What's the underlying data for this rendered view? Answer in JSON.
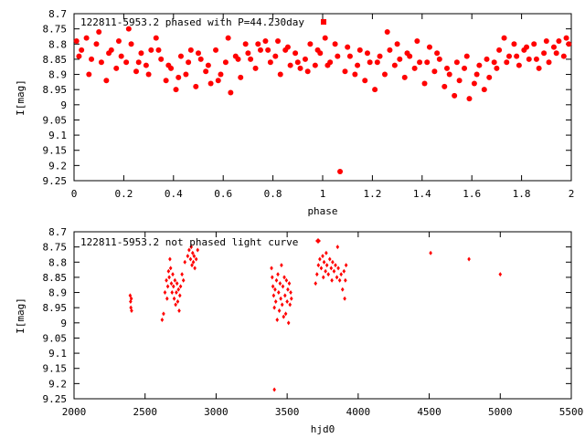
{
  "colors": {
    "marker": "#ff0000",
    "axis": "#000000",
    "background": "#ffffff"
  },
  "chart_data": [
    {
      "type": "scatter",
      "title": "122811-5953.2 phased with P=44.230day",
      "xlabel": "phase",
      "ylabel": "I[mag]",
      "xlim": [
        0,
        2
      ],
      "ylim": [
        9.25,
        8.7
      ],
      "y_inverted": true,
      "grid": false,
      "marker": "filled-circle",
      "xticks": [
        "0",
        "0.2",
        "0.4",
        "0.6",
        "0.8",
        "1",
        "1.2",
        "1.4",
        "1.6",
        "1.8",
        "2"
      ],
      "xtick_values": [
        0,
        0.2,
        0.4,
        0.6,
        0.8,
        1,
        1.2,
        1.4,
        1.6,
        1.8,
        2
      ],
      "yticks": [
        "8.7",
        "8.75",
        "8.8",
        "8.85",
        "8.9",
        "8.95",
        "9",
        "9.05",
        "9.1",
        "9.15",
        "9.2",
        "9.25"
      ],
      "ytick_values": [
        8.7,
        8.75,
        8.8,
        8.85,
        8.9,
        8.95,
        9.0,
        9.05,
        9.1,
        9.15,
        9.2,
        9.25
      ],
      "points": [
        [
          0.01,
          8.79
        ],
        [
          0.03,
          8.82
        ],
        [
          0.05,
          8.78
        ],
        [
          0.07,
          8.85
        ],
        [
          0.09,
          8.8
        ],
        [
          0.11,
          8.86
        ],
        [
          0.13,
          8.92
        ],
        [
          0.15,
          8.82
        ],
        [
          0.17,
          8.88
        ],
        [
          0.19,
          8.84
        ],
        [
          0.21,
          8.86
        ],
        [
          0.23,
          8.8
        ],
        [
          0.25,
          8.89
        ],
        [
          0.27,
          8.83
        ],
        [
          0.29,
          8.87
        ],
        [
          0.31,
          8.82
        ],
        [
          0.33,
          8.78
        ],
        [
          0.35,
          8.85
        ],
        [
          0.37,
          8.92
        ],
        [
          0.39,
          8.88
        ],
        [
          0.41,
          8.95
        ],
        [
          0.43,
          8.84
        ],
        [
          0.45,
          8.9
        ],
        [
          0.47,
          8.82
        ],
        [
          0.49,
          8.94
        ],
        [
          0.51,
          8.85
        ],
        [
          0.53,
          8.89
        ],
        [
          0.55,
          8.93
        ],
        [
          0.57,
          8.82
        ],
        [
          0.59,
          8.9
        ],
        [
          0.61,
          8.86
        ],
        [
          0.63,
          8.96
        ],
        [
          0.65,
          8.84
        ],
        [
          0.67,
          8.91
        ],
        [
          0.69,
          8.8
        ],
        [
          0.71,
          8.85
        ],
        [
          0.73,
          8.88
        ],
        [
          0.75,
          8.82
        ],
        [
          0.77,
          8.79
        ],
        [
          0.79,
          8.86
        ],
        [
          0.81,
          8.84
        ],
        [
          0.83,
          8.9
        ],
        [
          0.85,
          8.82
        ],
        [
          0.87,
          8.87
        ],
        [
          0.89,
          8.83
        ],
        [
          0.91,
          8.88
        ],
        [
          0.93,
          8.85
        ],
        [
          0.95,
          8.8
        ],
        [
          0.97,
          8.87
        ],
        [
          0.99,
          8.83
        ],
        [
          1.01,
          8.78
        ],
        [
          1.03,
          8.86
        ],
        [
          1.05,
          8.8
        ],
        [
          1.07,
          9.22
        ],
        [
          1.09,
          8.89
        ],
        [
          1.11,
          8.84
        ],
        [
          1.13,
          8.9
        ],
        [
          1.15,
          8.82
        ],
        [
          1.17,
          8.92
        ],
        [
          1.19,
          8.86
        ],
        [
          1.21,
          8.95
        ],
        [
          1.23,
          8.84
        ],
        [
          1.25,
          8.9
        ],
        [
          1.27,
          8.82
        ],
        [
          1.29,
          8.87
        ],
        [
          1.31,
          8.85
        ],
        [
          1.33,
          8.91
        ],
        [
          1.35,
          8.84
        ],
        [
          1.37,
          8.88
        ],
        [
          1.39,
          8.86
        ],
        [
          1.41,
          8.93
        ],
        [
          1.43,
          8.81
        ],
        [
          1.45,
          8.89
        ],
        [
          1.47,
          8.85
        ],
        [
          1.49,
          8.94
        ],
        [
          1.51,
          8.9
        ],
        [
          1.53,
          8.97
        ],
        [
          1.55,
          8.92
        ],
        [
          1.57,
          8.88
        ],
        [
          1.59,
          8.98
        ],
        [
          1.61,
          8.93
        ],
        [
          1.63,
          8.87
        ],
        [
          1.65,
          8.95
        ],
        [
          1.67,
          8.91
        ],
        [
          1.69,
          8.86
        ],
        [
          1.71,
          8.82
        ],
        [
          1.73,
          8.78
        ],
        [
          1.75,
          8.84
        ],
        [
          1.77,
          8.8
        ],
        [
          1.79,
          8.87
        ],
        [
          1.81,
          8.82
        ],
        [
          1.83,
          8.85
        ],
        [
          1.85,
          8.8
        ],
        [
          1.87,
          8.88
        ],
        [
          1.89,
          8.83
        ],
        [
          1.91,
          8.86
        ],
        [
          1.93,
          8.81
        ],
        [
          1.95,
          8.79
        ],
        [
          1.97,
          8.84
        ],
        [
          1.99,
          8.8
        ],
        [
          0.02,
          8.84
        ],
        [
          0.06,
          8.9
        ],
        [
          0.1,
          8.76
        ],
        [
          0.14,
          8.83
        ],
        [
          0.18,
          8.79
        ],
        [
          0.22,
          8.75
        ],
        [
          0.26,
          8.86
        ],
        [
          0.3,
          8.9
        ],
        [
          0.34,
          8.82
        ],
        [
          0.38,
          8.87
        ],
        [
          0.42,
          8.91
        ],
        [
          0.46,
          8.86
        ],
        [
          0.5,
          8.83
        ],
        [
          0.54,
          8.87
        ],
        [
          0.58,
          8.92
        ],
        [
          0.62,
          8.78
        ],
        [
          0.66,
          8.85
        ],
        [
          0.7,
          8.83
        ],
        [
          0.74,
          8.8
        ],
        [
          0.78,
          8.82
        ],
        [
          0.82,
          8.79
        ],
        [
          0.86,
          8.81
        ],
        [
          0.9,
          8.86
        ],
        [
          0.94,
          8.89
        ],
        [
          0.98,
          8.82
        ],
        [
          1.02,
          8.87
        ],
        [
          1.06,
          8.84
        ],
        [
          1.1,
          8.81
        ],
        [
          1.14,
          8.87
        ],
        [
          1.18,
          8.83
        ],
        [
          1.22,
          8.86
        ],
        [
          1.26,
          8.76
        ],
        [
          1.3,
          8.8
        ],
        [
          1.34,
          8.83
        ],
        [
          1.38,
          8.79
        ],
        [
          1.42,
          8.86
        ],
        [
          1.46,
          8.83
        ],
        [
          1.5,
          8.88
        ],
        [
          1.54,
          8.86
        ],
        [
          1.58,
          8.84
        ],
        [
          1.62,
          8.9
        ],
        [
          1.66,
          8.85
        ],
        [
          1.7,
          8.88
        ],
        [
          1.74,
          8.86
        ],
        [
          1.78,
          8.84
        ],
        [
          1.82,
          8.81
        ],
        [
          1.86,
          8.85
        ],
        [
          1.9,
          8.79
        ],
        [
          1.94,
          8.83
        ],
        [
          1.98,
          8.78
        ]
      ]
    },
    {
      "type": "scatter",
      "title": "122811-5953.2 not phased light curve",
      "xlabel": "hjd0",
      "ylabel": "I[mag]",
      "xlim": [
        2000,
        5500
      ],
      "ylim": [
        9.25,
        8.7
      ],
      "y_inverted": true,
      "grid": false,
      "marker": "small-diamond",
      "xticks": [
        "2000",
        "2500",
        "3000",
        "3500",
        "4000",
        "4500",
        "5000",
        "5500"
      ],
      "xtick_values": [
        2000,
        2500,
        3000,
        3500,
        4000,
        4500,
        5000,
        5500
      ],
      "yticks": [
        "8.7",
        "8.75",
        "8.8",
        "8.85",
        "8.9",
        "8.95",
        "9",
        "9.05",
        "9.1",
        "9.15",
        "9.2",
        "9.25"
      ],
      "ytick_values": [
        8.7,
        8.75,
        8.8,
        8.85,
        8.9,
        8.95,
        9.0,
        9.05,
        9.1,
        9.15,
        9.2,
        9.25
      ],
      "points": [
        [
          2395,
          8.91
        ],
        [
          2398,
          8.93
        ],
        [
          2400,
          8.95
        ],
        [
          2403,
          8.92
        ],
        [
          2405,
          8.96
        ],
        [
          2620,
          8.99
        ],
        [
          2630,
          8.97
        ],
        [
          2640,
          8.9
        ],
        [
          2650,
          8.86
        ],
        [
          2655,
          8.92
        ],
        [
          2660,
          8.88
        ],
        [
          2665,
          8.83
        ],
        [
          2670,
          8.85
        ],
        [
          2675,
          8.79
        ],
        [
          2680,
          8.82
        ],
        [
          2685,
          8.87
        ],
        [
          2690,
          8.9
        ],
        [
          2695,
          8.84
        ],
        [
          2700,
          8.88
        ],
        [
          2705,
          8.92
        ],
        [
          2710,
          8.86
        ],
        [
          2715,
          8.94
        ],
        [
          2720,
          8.9
        ],
        [
          2725,
          8.87
        ],
        [
          2730,
          8.93
        ],
        [
          2735,
          8.89
        ],
        [
          2740,
          8.96
        ],
        [
          2745,
          8.91
        ],
        [
          2750,
          8.88
        ],
        [
          2760,
          8.84
        ],
        [
          2770,
          8.86
        ],
        [
          2780,
          8.8
        ],
        [
          2800,
          8.78
        ],
        [
          2810,
          8.76
        ],
        [
          2820,
          8.79
        ],
        [
          2825,
          8.75
        ],
        [
          2830,
          8.81
        ],
        [
          2835,
          8.77
        ],
        [
          2840,
          8.8
        ],
        [
          2845,
          8.78
        ],
        [
          2850,
          8.82
        ],
        [
          2860,
          8.79
        ],
        [
          2870,
          8.76
        ],
        [
          3390,
          8.82
        ],
        [
          3395,
          8.85
        ],
        [
          3400,
          8.88
        ],
        [
          3405,
          8.91
        ],
        [
          3410,
          8.95
        ],
        [
          3415,
          8.89
        ],
        [
          3420,
          8.93
        ],
        [
          3425,
          8.86
        ],
        [
          3430,
          8.99
        ],
        [
          3435,
          8.84
        ],
        [
          3440,
          8.9
        ],
        [
          3445,
          8.96
        ],
        [
          3450,
          8.87
        ],
        [
          3455,
          8.92
        ],
        [
          3460,
          8.81
        ],
        [
          3465,
          8.94
        ],
        [
          3470,
          8.88
        ],
        [
          3475,
          8.98
        ],
        [
          3480,
          8.85
        ],
        [
          3485,
          8.91
        ],
        [
          3490,
          8.97
        ],
        [
          3495,
          8.86
        ],
        [
          3500,
          8.93
        ],
        [
          3505,
          8.89
        ],
        [
          3510,
          9.0
        ],
        [
          3515,
          8.87
        ],
        [
          3520,
          8.94
        ],
        [
          3525,
          8.9
        ],
        [
          3530,
          8.92
        ],
        [
          3410,
          9.22
        ],
        [
          3700,
          8.87
        ],
        [
          3710,
          8.84
        ],
        [
          3720,
          8.81
        ],
        [
          3730,
          8.79
        ],
        [
          3740,
          8.82
        ],
        [
          3750,
          8.78
        ],
        [
          3755,
          8.85
        ],
        [
          3760,
          8.8
        ],
        [
          3770,
          8.83
        ],
        [
          3775,
          8.77
        ],
        [
          3780,
          8.81
        ],
        [
          3790,
          8.84
        ],
        [
          3800,
          8.79
        ],
        [
          3810,
          8.82
        ],
        [
          3815,
          8.86
        ],
        [
          3820,
          8.8
        ],
        [
          3830,
          8.83
        ],
        [
          3840,
          8.81
        ],
        [
          3850,
          8.85
        ],
        [
          3855,
          8.75
        ],
        [
          3860,
          8.82
        ],
        [
          3870,
          8.86
        ],
        [
          3880,
          8.84
        ],
        [
          3890,
          8.89
        ],
        [
          3900,
          8.83
        ],
        [
          3905,
          8.92
        ],
        [
          3910,
          8.86
        ],
        [
          3915,
          8.81
        ],
        [
          4510,
          8.77
        ],
        [
          4780,
          8.79
        ],
        [
          5000,
          8.84
        ]
      ]
    }
  ]
}
